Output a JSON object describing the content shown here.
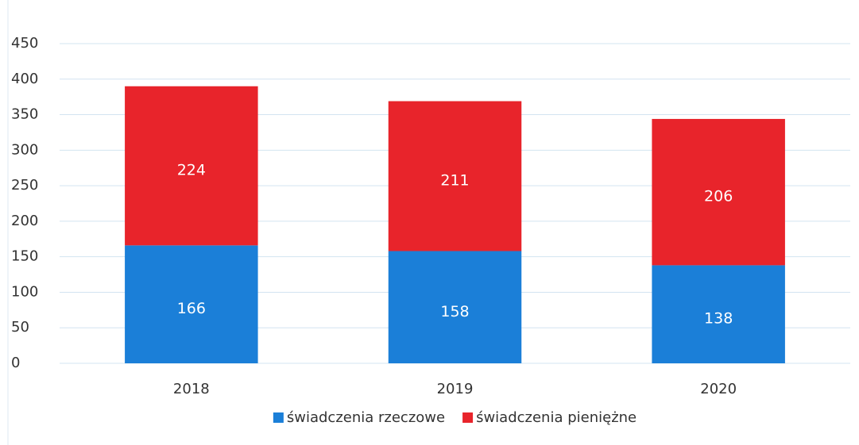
{
  "chart_data": {
    "type": "stacked_bar",
    "categories": [
      "2018",
      "2019",
      "2020"
    ],
    "series": [
      {
        "name": "świadczenia rzeczowe",
        "color": "#1b7fd8",
        "values": [
          166,
          158,
          138
        ]
      },
      {
        "name": "świadczenia pieniężne",
        "color": "#e8242b",
        "values": [
          224,
          211,
          206
        ]
      }
    ],
    "ylim": [
      0,
      450
    ],
    "yticks": [
      0,
      50,
      100,
      150,
      200,
      250,
      300,
      350,
      400,
      450
    ],
    "grid": true,
    "legend": "bottom"
  }
}
